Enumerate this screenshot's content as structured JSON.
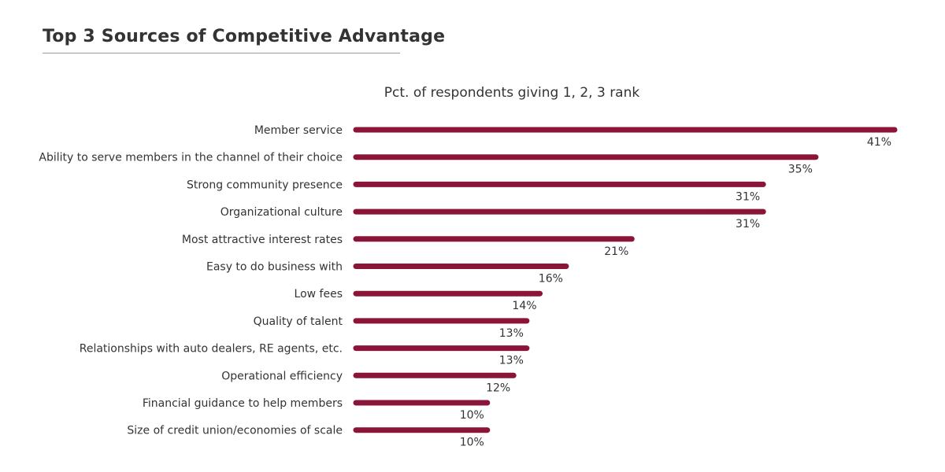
{
  "header": {
    "title": "Top 3 Sources of Competitive Advantage"
  },
  "chart_data": {
    "type": "bar",
    "orientation": "horizontal",
    "title": "Pct. of respondents giving 1, 2, 3 rank",
    "xlabel": "",
    "ylabel": "",
    "xlim": [
      0,
      41
    ],
    "grid": false,
    "legend": "none",
    "bar_color": "#8b1538",
    "value_suffix": "%",
    "categories": [
      "Member service",
      "Ability to serve members in the channel of their choice",
      "Strong community presence",
      "Organizational culture",
      "Most attractive interest rates",
      "Easy to do business with",
      "Low fees",
      "Quality of talent",
      "Relationships with auto dealers, RE agents, etc.",
      "Operational efficiency",
      "Financial guidance to help members",
      "Size of credit union/economies of scale"
    ],
    "values": [
      41,
      35,
      31,
      31,
      21,
      16,
      14,
      13,
      13,
      12,
      10,
      10
    ],
    "data_labels": [
      "41%",
      "35%",
      "31%",
      "31%",
      "21%",
      "16%",
      "14%",
      "13%",
      "13%",
      "12%",
      "10%",
      "10%"
    ]
  }
}
